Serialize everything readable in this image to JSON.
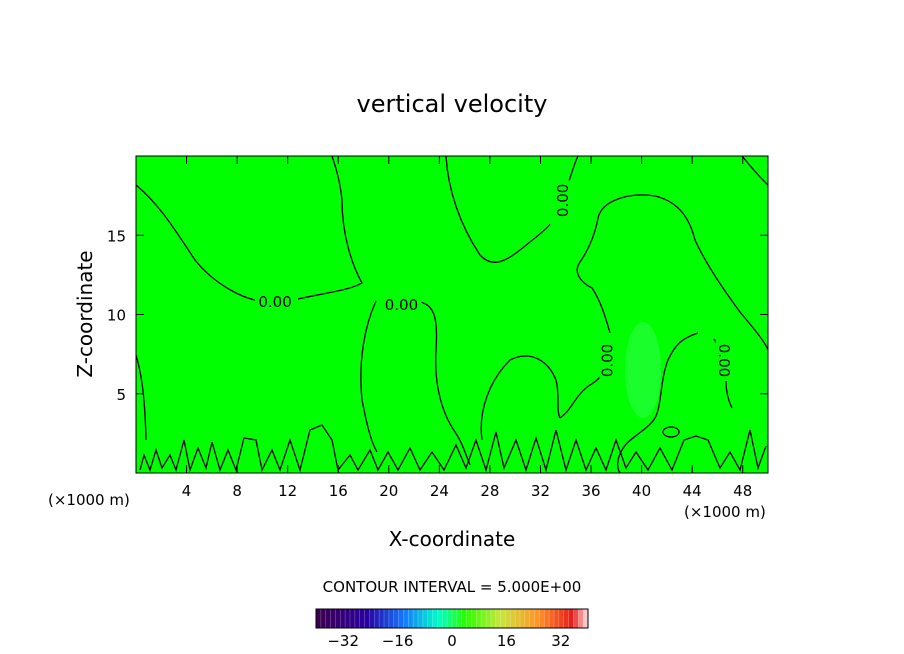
{
  "chart_data": {
    "type": "heatmap",
    "title": "vertical velocity",
    "xlabel": "X-coordinate",
    "ylabel": "Z-coordinate",
    "x_unit": "(×1000 m)",
    "z_unit": "(×1000 m)",
    "xlim": [
      0,
      50
    ],
    "ylim": [
      0,
      20
    ],
    "x_ticks": [
      4,
      8,
      12,
      16,
      20,
      24,
      28,
      32,
      36,
      40,
      44,
      48
    ],
    "y_ticks": [
      5,
      10,
      15
    ],
    "field_color": "#00ff00",
    "contour_level": "0.00",
    "contour_labels": [
      {
        "text": "0.00",
        "x": 11,
        "z": 10.8,
        "angle": 0
      },
      {
        "text": "0.00",
        "x": 21,
        "z": 10.6,
        "angle": 0
      },
      {
        "text": "0.00",
        "x": 33.8,
        "z": 17.2,
        "angle": -90
      },
      {
        "text": "0.00",
        "x": 37.3,
        "z": 7.1,
        "angle": -90
      },
      {
        "text": "0.00",
        "x": 46.5,
        "z": 7.1,
        "angle": 90
      }
    ],
    "contour_interval": "CONTOUR INTERVAL = 5.000E+00",
    "colorbar": {
      "ticks": [
        "-32",
        "-16",
        "0",
        "16",
        "32"
      ],
      "tick_values": [
        -32,
        -16,
        0,
        16,
        32
      ],
      "range": [
        -40,
        40
      ]
    }
  }
}
